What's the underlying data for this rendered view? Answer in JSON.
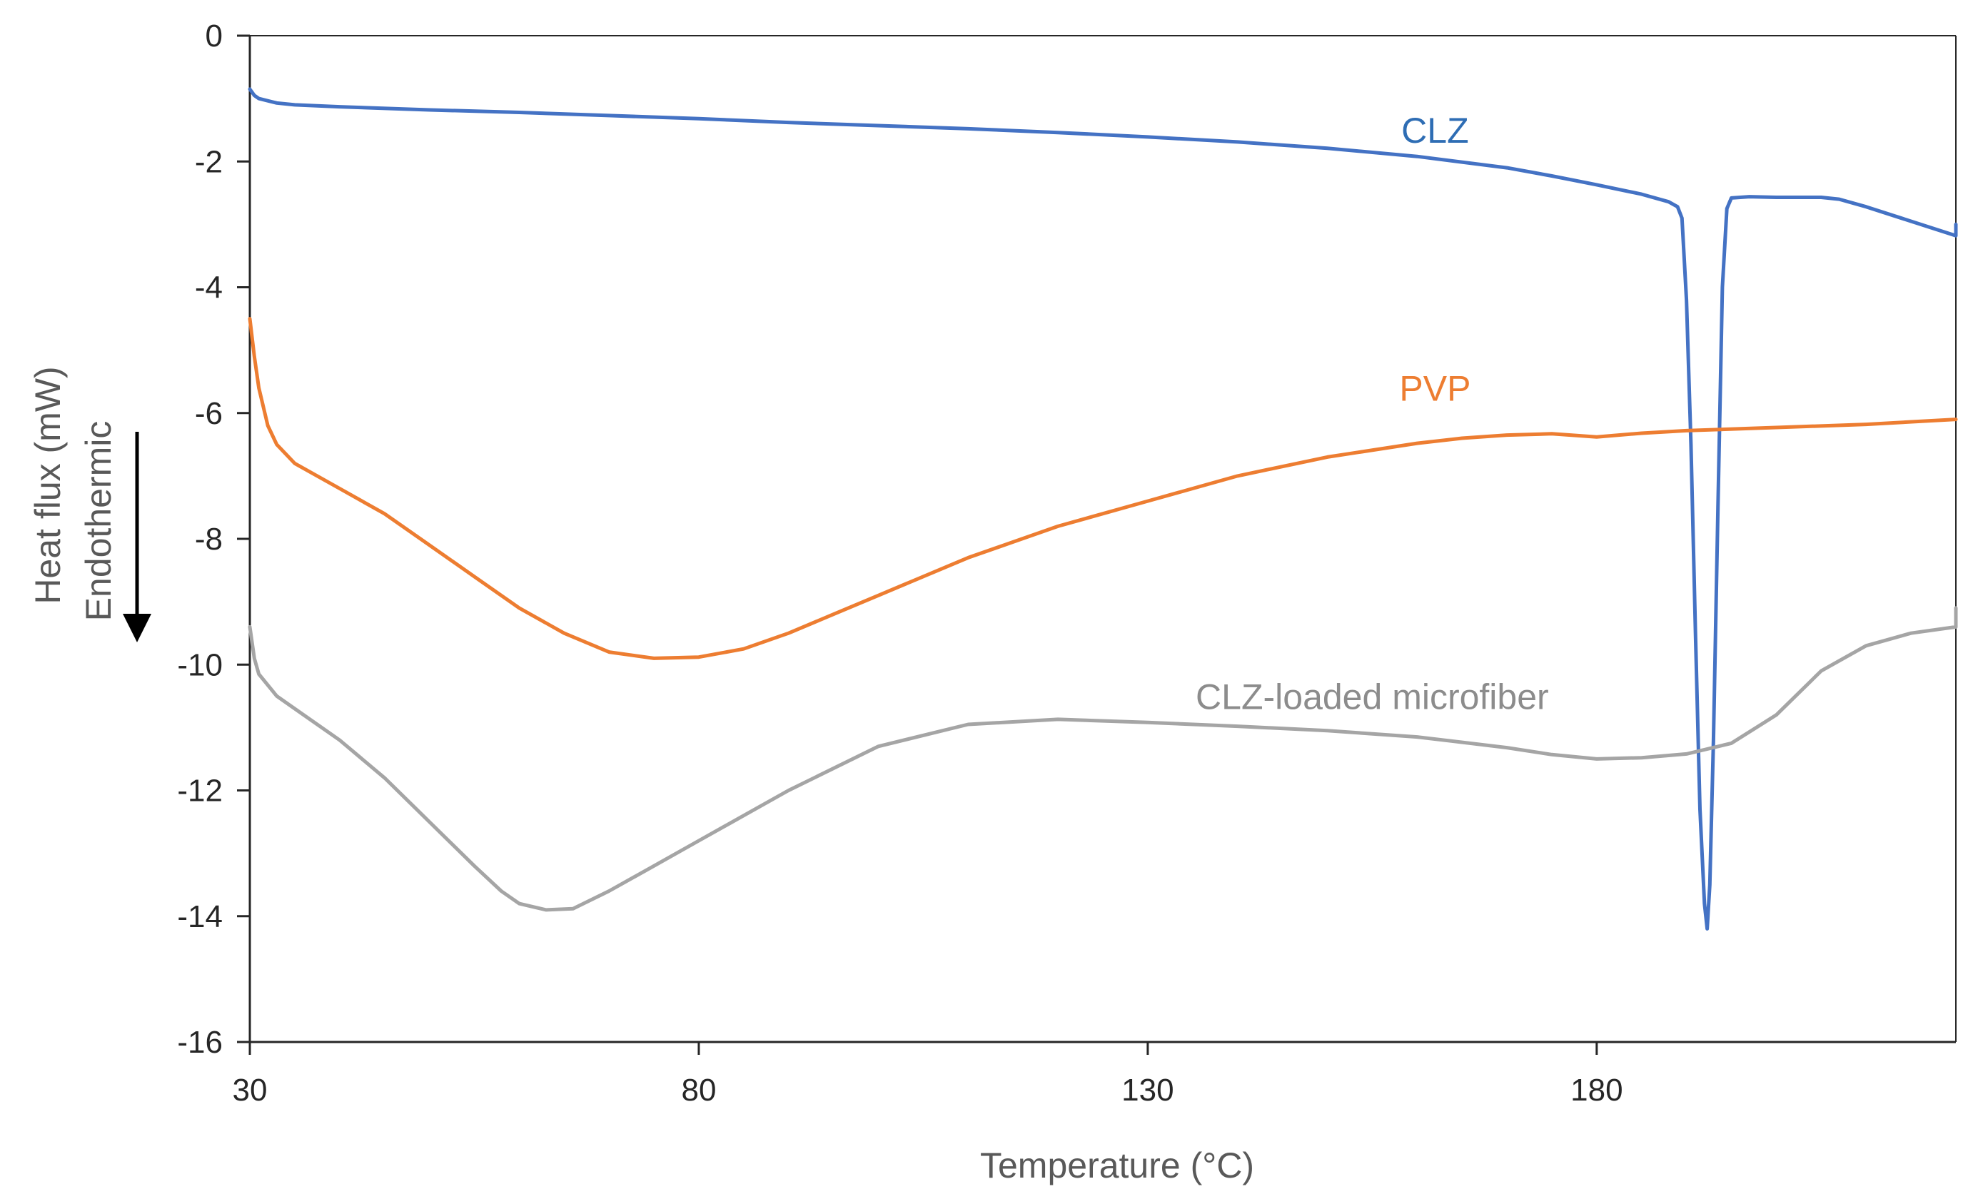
{
  "chart_data": {
    "type": "line",
    "xlabel": "Temperature (°C)",
    "ylabel": "Heat flux (mW)",
    "ylabel_secondary": "Endothermic",
    "xlim": [
      30,
      220
    ],
    "ylim": [
      -16,
      0
    ],
    "x_ticks": [
      30,
      80,
      130,
      180
    ],
    "y_ticks": [
      0,
      -2,
      -4,
      -6,
      -8,
      -10,
      -12,
      -14,
      -16
    ],
    "grid": false,
    "legend": "inline labels",
    "series": [
      {
        "name": "CLZ",
        "color": "#4472C4",
        "label_pos": [
          162,
          -1.5
        ],
        "points": [
          [
            30,
            -0.85
          ],
          [
            30.5,
            -0.95
          ],
          [
            31,
            -1.0
          ],
          [
            33,
            -1.07
          ],
          [
            35,
            -1.1
          ],
          [
            40,
            -1.13
          ],
          [
            50,
            -1.18
          ],
          [
            60,
            -1.22
          ],
          [
            70,
            -1.27
          ],
          [
            80,
            -1.32
          ],
          [
            90,
            -1.38
          ],
          [
            100,
            -1.43
          ],
          [
            110,
            -1.48
          ],
          [
            120,
            -1.54
          ],
          [
            130,
            -1.61
          ],
          [
            140,
            -1.69
          ],
          [
            150,
            -1.79
          ],
          [
            160,
            -1.92
          ],
          [
            170,
            -2.1
          ],
          [
            175,
            -2.23
          ],
          [
            180,
            -2.37
          ],
          [
            185,
            -2.52
          ],
          [
            188,
            -2.64
          ],
          [
            189,
            -2.72
          ],
          [
            189.5,
            -2.9
          ],
          [
            190,
            -4.2
          ],
          [
            190.5,
            -6.5
          ],
          [
            191,
            -9.5
          ],
          [
            191.5,
            -12.3
          ],
          [
            192,
            -13.8
          ],
          [
            192.3,
            -14.2
          ],
          [
            192.6,
            -13.5
          ],
          [
            193,
            -11.2
          ],
          [
            193.5,
            -7.5
          ],
          [
            194,
            -4.0
          ],
          [
            194.5,
            -2.75
          ],
          [
            195,
            -2.58
          ],
          [
            197,
            -2.56
          ],
          [
            200,
            -2.57
          ],
          [
            205,
            -2.57
          ],
          [
            207,
            -2.6
          ],
          [
            210,
            -2.72
          ],
          [
            215,
            -2.95
          ],
          [
            220,
            -3.18
          ],
          [
            220,
            -3.0
          ]
        ]
      },
      {
        "name": "PVP",
        "color": "#ED7D31",
        "label_pos": [
          162,
          -5.6
        ],
        "points": [
          [
            30,
            -4.5
          ],
          [
            30.5,
            -5.1
          ],
          [
            31,
            -5.6
          ],
          [
            32,
            -6.2
          ],
          [
            33,
            -6.5
          ],
          [
            35,
            -6.8
          ],
          [
            40,
            -7.2
          ],
          [
            45,
            -7.6
          ],
          [
            50,
            -8.1
          ],
          [
            55,
            -8.6
          ],
          [
            60,
            -9.1
          ],
          [
            65,
            -9.5
          ],
          [
            70,
            -9.8
          ],
          [
            75,
            -9.9
          ],
          [
            80,
            -9.88
          ],
          [
            85,
            -9.75
          ],
          [
            90,
            -9.5
          ],
          [
            95,
            -9.2
          ],
          [
            100,
            -8.9
          ],
          [
            110,
            -8.3
          ],
          [
            120,
            -7.8
          ],
          [
            130,
            -7.4
          ],
          [
            140,
            -7.0
          ],
          [
            150,
            -6.7
          ],
          [
            160,
            -6.48
          ],
          [
            165,
            -6.4
          ],
          [
            170,
            -6.35
          ],
          [
            175,
            -6.33
          ],
          [
            180,
            -6.38
          ],
          [
            185,
            -6.32
          ],
          [
            190,
            -6.28
          ],
          [
            200,
            -6.23
          ],
          [
            210,
            -6.18
          ],
          [
            220,
            -6.1
          ]
        ]
      },
      {
        "name": "CLZ-loaded microfiber",
        "color": "#A5A5A5",
        "label_pos": [
          155,
          -10.5
        ],
        "points": [
          [
            30,
            -9.4
          ],
          [
            30.5,
            -9.9
          ],
          [
            31,
            -10.15
          ],
          [
            33,
            -10.5
          ],
          [
            36,
            -10.8
          ],
          [
            40,
            -11.2
          ],
          [
            45,
            -11.8
          ],
          [
            50,
            -12.5
          ],
          [
            55,
            -13.2
          ],
          [
            58,
            -13.6
          ],
          [
            60,
            -13.8
          ],
          [
            63,
            -13.9
          ],
          [
            66,
            -13.88
          ],
          [
            70,
            -13.6
          ],
          [
            75,
            -13.2
          ],
          [
            80,
            -12.8
          ],
          [
            90,
            -12.0
          ],
          [
            100,
            -11.3
          ],
          [
            110,
            -10.95
          ],
          [
            120,
            -10.87
          ],
          [
            130,
            -10.92
          ],
          [
            140,
            -10.98
          ],
          [
            150,
            -11.05
          ],
          [
            160,
            -11.15
          ],
          [
            170,
            -11.32
          ],
          [
            175,
            -11.43
          ],
          [
            180,
            -11.5
          ],
          [
            185,
            -11.48
          ],
          [
            190,
            -11.42
          ],
          [
            195,
            -11.25
          ],
          [
            200,
            -10.8
          ],
          [
            205,
            -10.1
          ],
          [
            210,
            -9.7
          ],
          [
            215,
            -9.5
          ],
          [
            220,
            -9.4
          ],
          [
            220,
            -9.1
          ]
        ]
      }
    ]
  }
}
